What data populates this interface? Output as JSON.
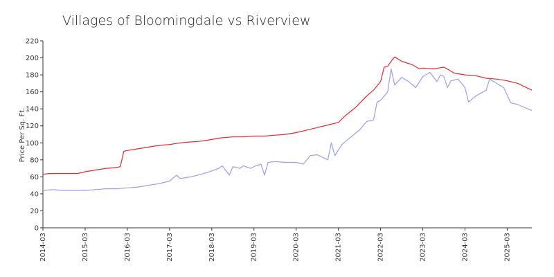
{
  "chart_data": {
    "type": "line",
    "title": "Villages of Bloomingdale vs Riverview",
    "xlabel": "",
    "ylabel": "Price Per Sq. Ft.",
    "ylim": [
      0,
      220
    ],
    "yticks": [
      0,
      20,
      40,
      60,
      80,
      100,
      120,
      140,
      160,
      180,
      200,
      220
    ],
    "xlim": [
      "2014-03",
      "2025-10"
    ],
    "xticks": [
      "2014-03",
      "2015-03",
      "2016-03",
      "2017-03",
      "2018-03",
      "2019-03",
      "2020-03",
      "2021-03",
      "2022-03",
      "2023-03",
      "2024-03",
      "2025-03"
    ],
    "grid": false,
    "legend": "none",
    "series": [
      {
        "color": "#e8262d",
        "points": [
          [
            "2014-03",
            63
          ],
          [
            "2014-05",
            64
          ],
          [
            "2014-09",
            64
          ],
          [
            "2015-01",
            64
          ],
          [
            "2015-03",
            66
          ],
          [
            "2015-06",
            68
          ],
          [
            "2015-09",
            70
          ],
          [
            "2015-12",
            71
          ],
          [
            "2016-01",
            72
          ],
          [
            "2016-02",
            90
          ],
          [
            "2016-03",
            91
          ],
          [
            "2016-06",
            93
          ],
          [
            "2016-09",
            95
          ],
          [
            "2016-12",
            97
          ],
          [
            "2017-03",
            98
          ],
          [
            "2017-06",
            100
          ],
          [
            "2017-09",
            101
          ],
          [
            "2017-12",
            102
          ],
          [
            "2018-03",
            104
          ],
          [
            "2018-06",
            106
          ],
          [
            "2018-09",
            107
          ],
          [
            "2018-12",
            107
          ],
          [
            "2019-03",
            108
          ],
          [
            "2019-06",
            108
          ],
          [
            "2019-09",
            109
          ],
          [
            "2019-12",
            110
          ],
          [
            "2020-03",
            112
          ],
          [
            "2020-06",
            115
          ],
          [
            "2020-09",
            118
          ],
          [
            "2020-12",
            121
          ],
          [
            "2021-03",
            124
          ],
          [
            "2021-05",
            132
          ],
          [
            "2021-08",
            142
          ],
          [
            "2021-11",
            155
          ],
          [
            "2022-01",
            162
          ],
          [
            "2022-03",
            172
          ],
          [
            "2022-04",
            189
          ],
          [
            "2022-05",
            190
          ],
          [
            "2022-06",
            196
          ],
          [
            "2022-07",
            201
          ],
          [
            "2022-09",
            196
          ],
          [
            "2022-12",
            192
          ],
          [
            "2023-02",
            187
          ],
          [
            "2023-03",
            188
          ],
          [
            "2023-06",
            187
          ],
          [
            "2023-09",
            189
          ],
          [
            "2023-12",
            182
          ],
          [
            "2024-03",
            180
          ],
          [
            "2024-06",
            179
          ],
          [
            "2024-09",
            176
          ],
          [
            "2024-12",
            175
          ],
          [
            "2025-03",
            173
          ],
          [
            "2025-06",
            170
          ],
          [
            "2025-08",
            166
          ],
          [
            "2025-10",
            162
          ]
        ]
      },
      {
        "color": "#9b9bf0",
        "points": [
          [
            "2014-03",
            44
          ],
          [
            "2014-06",
            45
          ],
          [
            "2014-09",
            44
          ],
          [
            "2015-01",
            44
          ],
          [
            "2015-03",
            44
          ],
          [
            "2015-06",
            45
          ],
          [
            "2015-09",
            46
          ],
          [
            "2015-12",
            46
          ],
          [
            "2016-03",
            47
          ],
          [
            "2016-06",
            48
          ],
          [
            "2016-09",
            50
          ],
          [
            "2016-12",
            52
          ],
          [
            "2017-03",
            55
          ],
          [
            "2017-05",
            62
          ],
          [
            "2017-06",
            58
          ],
          [
            "2017-09",
            60
          ],
          [
            "2017-12",
            63
          ],
          [
            "2018-03",
            67
          ],
          [
            "2018-05",
            70
          ],
          [
            "2018-06",
            73
          ],
          [
            "2018-08",
            62
          ],
          [
            "2018-09",
            72
          ],
          [
            "2018-11",
            70
          ],
          [
            "2018-12",
            73
          ],
          [
            "2019-02",
            70
          ],
          [
            "2019-03",
            72
          ],
          [
            "2019-05",
            75
          ],
          [
            "2019-06",
            62
          ],
          [
            "2019-07",
            77
          ],
          [
            "2019-09",
            78
          ],
          [
            "2019-12",
            77
          ],
          [
            "2020-03",
            77
          ],
          [
            "2020-05",
            75
          ],
          [
            "2020-07",
            85
          ],
          [
            "2020-09",
            86
          ],
          [
            "2020-12",
            80
          ],
          [
            "2021-01",
            100
          ],
          [
            "2021-02",
            85
          ],
          [
            "2021-04",
            98
          ],
          [
            "2021-06",
            105
          ],
          [
            "2021-09",
            115
          ],
          [
            "2021-11",
            125
          ],
          [
            "2022-01",
            127
          ],
          [
            "2022-02",
            148
          ],
          [
            "2022-03",
            150
          ],
          [
            "2022-05",
            160
          ],
          [
            "2022-06",
            187
          ],
          [
            "2022-07",
            168
          ],
          [
            "2022-09",
            177
          ],
          [
            "2022-11",
            172
          ],
          [
            "2023-01",
            165
          ],
          [
            "2023-03",
            178
          ],
          [
            "2023-05",
            183
          ],
          [
            "2023-07",
            172
          ],
          [
            "2023-08",
            180
          ],
          [
            "2023-09",
            178
          ],
          [
            "2023-10",
            165
          ],
          [
            "2023-11",
            173
          ],
          [
            "2024-01",
            175
          ],
          [
            "2024-03",
            165
          ],
          [
            "2024-04",
            148
          ],
          [
            "2024-06",
            155
          ],
          [
            "2024-09",
            162
          ],
          [
            "2024-10",
            175
          ],
          [
            "2024-12",
            170
          ],
          [
            "2025-02",
            165
          ],
          [
            "2025-04",
            147
          ],
          [
            "2025-06",
            145
          ],
          [
            "2025-10",
            138
          ]
        ]
      }
    ]
  }
}
